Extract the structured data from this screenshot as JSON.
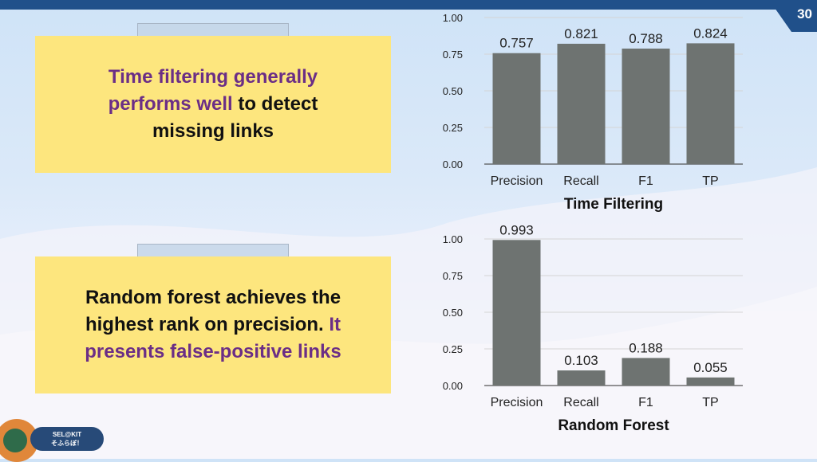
{
  "slide": {
    "page_number": "30"
  },
  "notes": [
    {
      "segments": [
        {
          "text": "Time filtering generally performs well",
          "highlight": true
        },
        {
          "text": " to detect missing links",
          "highlight": false
        }
      ]
    },
    {
      "segments": [
        {
          "text": "Random forest achieves the highest rank on precision. ",
          "highlight": false
        },
        {
          "text": "It presents false-positive links",
          "highlight": true
        }
      ]
    }
  ],
  "logo": {
    "line1": "SEL@KIT",
    "line2": "そふらぼ！"
  },
  "colors": {
    "bar": "#6e7371",
    "note_bg": "#fde67e",
    "highlight_text": "#6b2e86",
    "top_bar": "#20508a"
  },
  "chart_data": [
    {
      "type": "bar",
      "categories": [
        "Precision",
        "Recall",
        "F1",
        "TP"
      ],
      "values": [
        0.757,
        0.821,
        0.788,
        0.824
      ],
      "value_labels": [
        "0.757",
        "0.821",
        "0.788",
        "0.824"
      ],
      "title": "Time Filtering",
      "xlabel": "",
      "ylabel": "",
      "ylim": [
        0,
        1
      ],
      "yticks": [
        "0.00",
        "0.25",
        "0.50",
        "0.75",
        "1.00"
      ],
      "grid": true
    },
    {
      "type": "bar",
      "categories": [
        "Precision",
        "Recall",
        "F1",
        "TP"
      ],
      "values": [
        0.993,
        0.103,
        0.188,
        0.055
      ],
      "value_labels": [
        "0.993",
        "0.103",
        "0.188",
        "0.055"
      ],
      "title": "Random Forest",
      "xlabel": "",
      "ylabel": "",
      "ylim": [
        0,
        1
      ],
      "yticks": [
        "0.00",
        "0.25",
        "0.50",
        "0.75",
        "1.00"
      ],
      "grid": true
    }
  ]
}
